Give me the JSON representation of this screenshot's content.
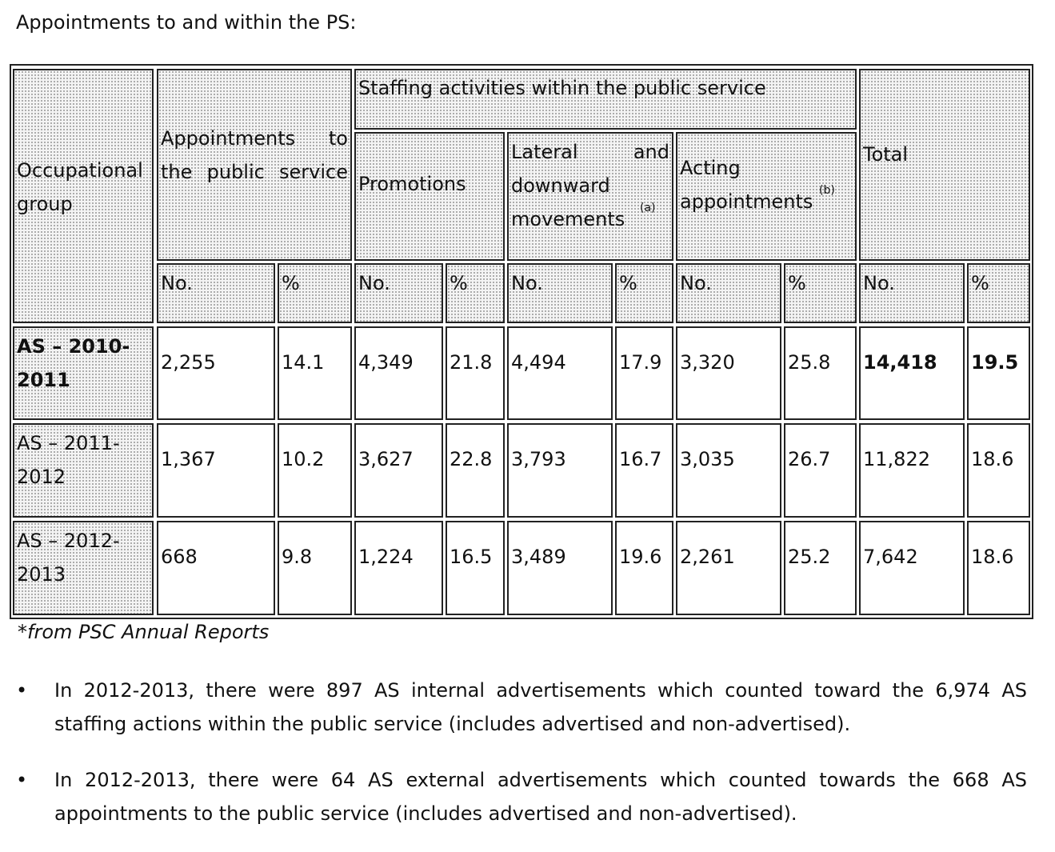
{
  "intro": "Appointments to and within the PS:",
  "table": {
    "headers": {
      "occupational_group": "Occupational group",
      "appointments": "Appointments to the public service",
      "staffing": "Staffing activities within the public service",
      "promotions": "Promotions",
      "lateral": "Lateral and downward movements",
      "lateral_note": "(a)",
      "acting": "Acting appointments",
      "acting_note": "(b)",
      "total": "Total",
      "no": "No.",
      "pct": "%"
    },
    "rows": [
      {
        "group": "AS – 2010-2011",
        "values": [
          "2,255",
          "14.1",
          "4,349",
          "21.8",
          "4,494",
          "17.9",
          "3,320",
          "25.8",
          "14,418",
          "19.5"
        ]
      },
      {
        "group": "AS – 2011-2012",
        "values": [
          "1,367",
          "10.2",
          "3,627",
          "22.8",
          "3,793",
          "16.7",
          "3,035",
          "26.7",
          "11,822",
          "18.6"
        ]
      },
      {
        "group": "AS – 2012-2013",
        "values": [
          "668",
          "9.8",
          "1,224",
          "16.5",
          "3,489",
          "19.6",
          "2,261",
          "25.2",
          "7,642",
          "18.6"
        ]
      }
    ]
  },
  "source_note": "*from PSC Annual Reports",
  "bullets": [
    "In 2012-2013, there were 897 AS internal advertisements which counted toward the 6,974 AS staffing actions within the public service (includes advertised and non-advertised).",
    "In 2012-2013, there were 64 AS external advertisements which counted towards the 668 AS appointments to the public service (includes advertised and non-advertised)."
  ],
  "bullet_symbol": "•"
}
